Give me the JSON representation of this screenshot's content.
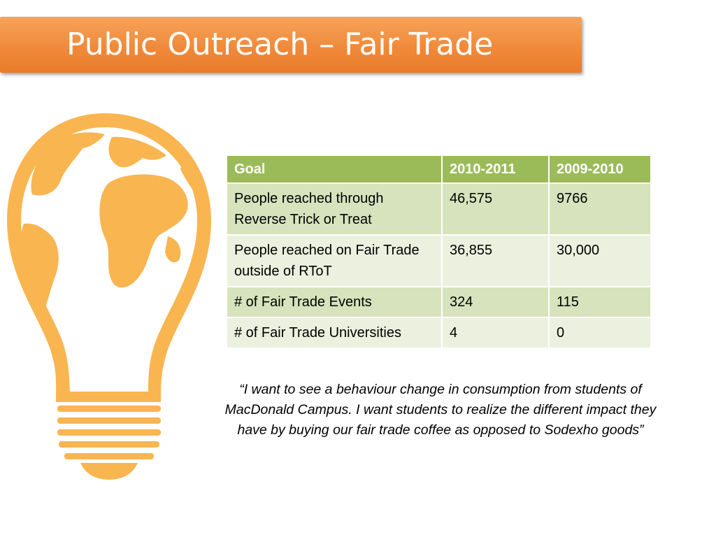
{
  "slide": {
    "title": "Public Outreach – Fair Trade"
  },
  "table": {
    "headers": [
      "Goal",
      "2010-2011",
      "2009-2010"
    ],
    "rows": [
      [
        "People reached through Reverse Trick or Treat",
        "46,575",
        "9766"
      ],
      [
        "People reached on Fair Trade outside of RToT",
        "36,855",
        "30,000"
      ],
      [
        "# of Fair Trade Events",
        "324",
        "115"
      ],
      [
        "# of Fair Trade Universities",
        "4",
        "0"
      ]
    ]
  },
  "quote": {
    "text": "“I want to see a behaviour change in consumption from students of MacDonald Campus. I want students to realize the different impact they have by buying our fair trade coffee as opposed to Sodexho goods”"
  },
  "colors": {
    "banner": "#f08a3a",
    "bulb": "#f9b550",
    "table_header": "#9bbb59",
    "row_odd": "#d6e3bc",
    "row_even": "#ebf1de"
  },
  "icons": {
    "illustration": "globe-lightbulb-icon"
  }
}
